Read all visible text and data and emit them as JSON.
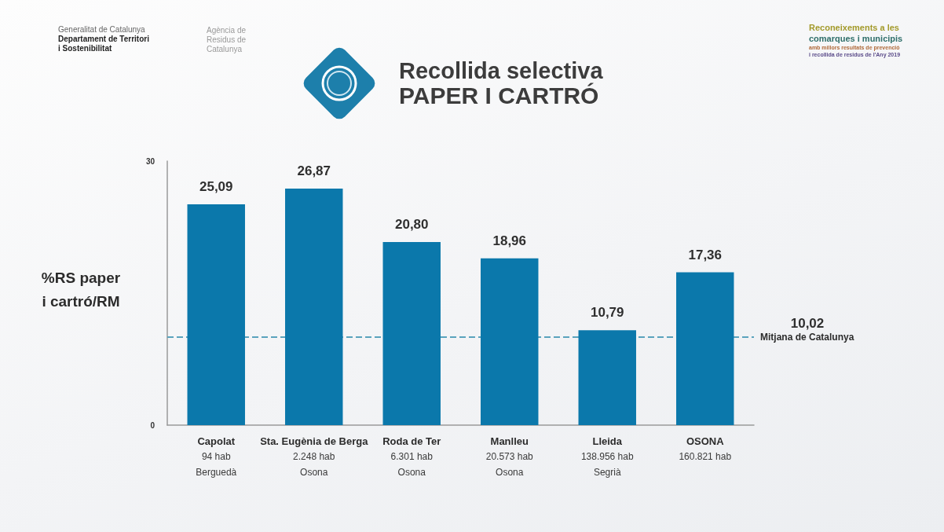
{
  "chart_data": {
    "type": "bar",
    "title": "Recollida selectiva",
    "subtitle": "PAPER I CARTRÓ",
    "ylabel": "%RS paper\ni cartró/RM",
    "annotations": [
      "Generalitat de Catalunya",
      "Departament de Territori i Sostenibilitat",
      "Agència de Residus de Catalunya",
      "Reconeixements a les",
      "comarques i municipis",
      "amb millors resultats de prevenció",
      "i recollida de residus de l'Any 2019",
      "10,02"
    ],
    "categories": [
      "Capolat\n94 hab\nBerguedà",
      "Sta. Eugènia de Berga\n2.248 hab\nOsona",
      "Roda de Ter\n6.301 hab\nOsona",
      "Manlleu\n20.573 hab\nOsona",
      "Lleida\n138.956 hab\nSegrià",
      "OSONA\n160.821 hab"
    ],
    "values": [
      25.09,
      26.87,
      20.8,
      18.96,
      10.79,
      17.36
    ],
    "value_labels": [
      "25,09",
      "26,87",
      "20,80",
      "18,96",
      "10,79",
      "17,36"
    ],
    "color": "#0b78ab",
    "ylim": [
      0,
      30
    ],
    "yticks": [
      0,
      30
    ],
    "ref_lines": [
      {
        "axis": "y",
        "value": 10.02,
        "label": "Mitjana de Catalunya",
        "color": "#5aa3bd",
        "line_style": "dashed"
      }
    ],
    "grid": false
  }
}
